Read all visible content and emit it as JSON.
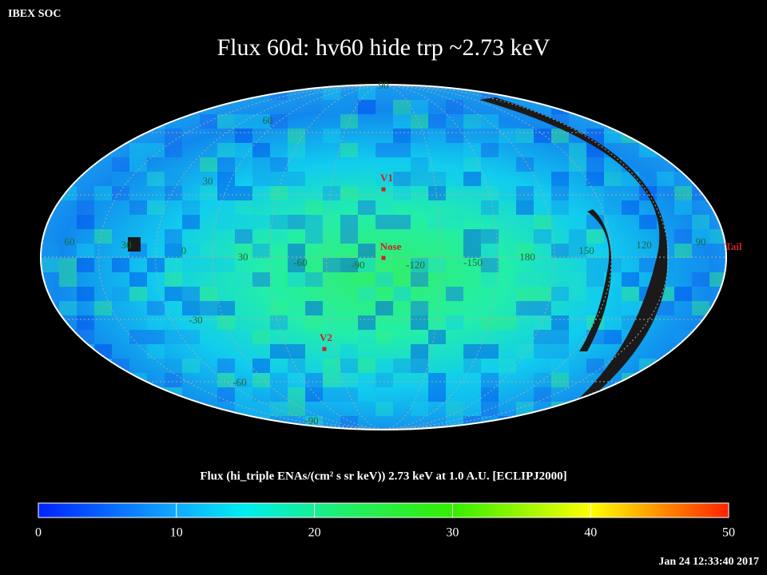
{
  "header": {
    "org": "IBEX SOC",
    "title": "Flux   60d: hv60 hide trp ~2.73 keV"
  },
  "map": {
    "grid_labels": [
      "90",
      "60",
      "30",
      "60",
      "30",
      "0",
      "30",
      "-60",
      "-90",
      "-120",
      "-150",
      "180",
      "150",
      "120",
      "90",
      "-30",
      "-60",
      "-90"
    ],
    "markers": [
      {
        "label": "V1"
      },
      {
        "label": "Nose"
      },
      {
        "label": "V2"
      },
      {
        "label": "Tail"
      }
    ]
  },
  "colorbar": {
    "label": "Flux (hi_triple ENAs/(cm² s sr keV))  2.73 keV at 1.0 A.U. [ECLIPJ2000]",
    "range": [
      0,
      50
    ],
    "ticks": [
      0,
      10,
      20,
      30,
      40,
      50
    ]
  },
  "footer": {
    "timestamp": "Jan 24 12:33:40 2017"
  }
}
